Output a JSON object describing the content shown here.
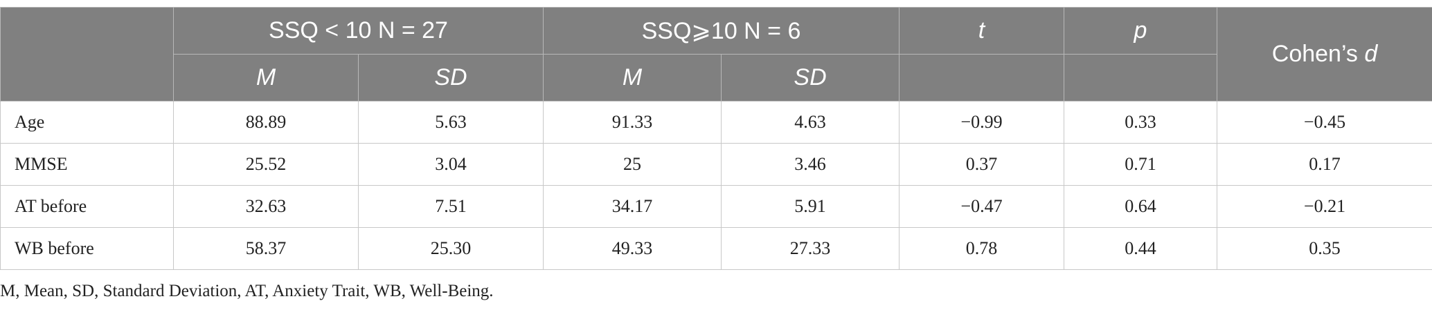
{
  "header": {
    "group1": "SSQ < 10 N = 27",
    "group2": "SSQ⩾10 N = 6",
    "t": "t",
    "p": "p",
    "cohens_prefix": "Cohen’s ",
    "cohens_d": "d",
    "sub": {
      "g1_mean": "M",
      "g1_sd": "SD",
      "g2_mean": "M",
      "g2_sd": "SD"
    }
  },
  "rows": [
    {
      "label": "Age",
      "m1": "88.89",
      "sd1": "5.63",
      "m2": "91.33",
      "sd2": "4.63",
      "t": "−0.99",
      "p": "0.33",
      "d": "−0.45"
    },
    {
      "label": "MMSE",
      "m1": "25.52",
      "sd1": "3.04",
      "m2": "25",
      "sd2": "3.46",
      "t": "0.37",
      "p": "0.71",
      "d": "0.17"
    },
    {
      "label": "AT before",
      "m1": "32.63",
      "sd1": "7.51",
      "m2": "34.17",
      "sd2": "5.91",
      "t": "−0.47",
      "p": "0.64",
      "d": "−0.21"
    },
    {
      "label": "WB before",
      "m1": "58.37",
      "sd1": "25.30",
      "m2": "49.33",
      "sd2": "27.33",
      "t": "0.78",
      "p": "0.44",
      "d": "0.35"
    }
  ],
  "footnote": "M, Mean, SD, Standard Deviation, AT, Anxiety Trait, WB, Well-Being.",
  "colors": {
    "header_bg": "#808080",
    "header_text": "#ffffff",
    "border": "#c8c8c8"
  }
}
